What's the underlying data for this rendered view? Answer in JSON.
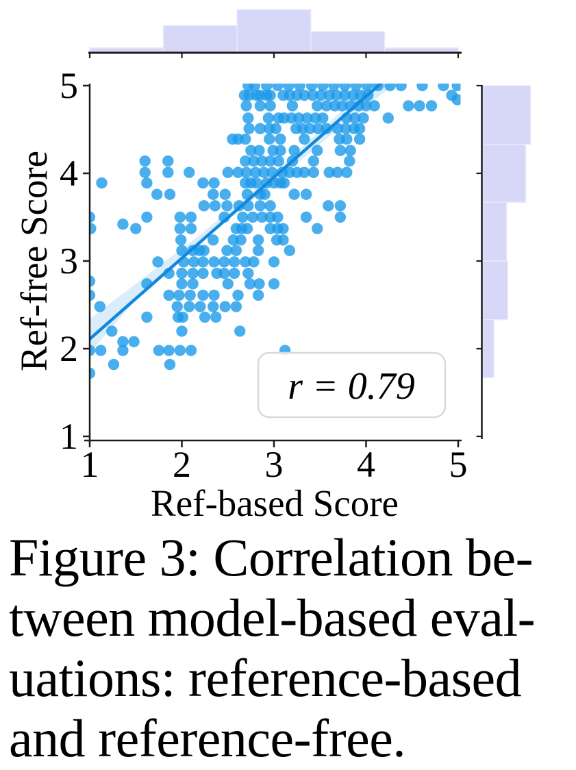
{
  "caption": {
    "lines": [
      "Figure 3: Correlation be-",
      "tween model-based eval-",
      "uations: reference-based",
      "and reference-free."
    ]
  },
  "chart_data": {
    "type": "scatter",
    "title": "",
    "xlabel": "Ref-based Score",
    "ylabel": "Ref-free Score",
    "xlim": [
      1,
      5
    ],
    "ylim": [
      1,
      5
    ],
    "x_ticks": [
      1,
      2,
      3,
      4,
      5
    ],
    "y_ticks": [
      1,
      2,
      3,
      4,
      5
    ],
    "grid": false,
    "legend": "none",
    "annotation": {
      "text": "r = 0.79",
      "correlation_r": 0.79,
      "position": "bottom-right"
    },
    "regression": {
      "line": [
        [
          1.0,
          2.11
        ],
        [
          4.35,
          5.2
        ]
      ],
      "band_upper": [
        [
          1.0,
          2.34
        ],
        [
          1.6,
          2.82
        ],
        [
          2.2,
          3.3
        ],
        [
          2.9,
          3.92
        ],
        [
          3.6,
          4.58
        ],
        [
          4.2,
          5.18
        ]
      ],
      "band_lower": [
        [
          1.0,
          1.95
        ],
        [
          1.6,
          2.68
        ],
        [
          2.2,
          3.24
        ],
        [
          2.9,
          3.8
        ],
        [
          3.6,
          4.42
        ],
        [
          4.5,
          5.18
        ]
      ]
    },
    "top_histogram": {
      "axis": "Ref-based Score",
      "bin_edges": [
        1.0,
        1.8,
        2.6,
        3.4,
        4.2,
        5.0
      ],
      "counts": [
        12,
        68,
        108,
        53,
        12
      ]
    },
    "right_histogram": {
      "axis": "Ref-free Score",
      "bin_edges": [
        1.67,
        2.33,
        3.0,
        3.67,
        4.33,
        5.0
      ],
      "counts": [
        19,
        42,
        40,
        72,
        80
      ]
    },
    "points": [
      [
        2.72,
        5
      ],
      [
        2.79,
        5
      ],
      [
        2.92,
        5
      ],
      [
        3.04,
        5
      ],
      [
        3.16,
        5
      ],
      [
        3.28,
        5
      ],
      [
        3.41,
        5
      ],
      [
        3.53,
        5
      ],
      [
        3.65,
        5
      ],
      [
        3.77,
        5
      ],
      [
        3.89,
        5
      ],
      [
        4.01,
        5
      ],
      [
        4.13,
        5
      ],
      [
        4.26,
        5
      ],
      [
        4.38,
        5
      ],
      [
        4.61,
        5
      ],
      [
        4.84,
        5
      ],
      [
        4.99,
        5
      ],
      [
        2.68,
        4.89
      ],
      [
        2.73,
        4.89
      ],
      [
        2.81,
        4.89
      ],
      [
        2.85,
        4.89
      ],
      [
        2.92,
        4.89
      ],
      [
        2.96,
        4.89
      ],
      [
        3.1,
        4.89
      ],
      [
        3.17,
        4.89
      ],
      [
        3.25,
        4.89
      ],
      [
        3.33,
        4.89
      ],
      [
        3.42,
        4.89
      ],
      [
        3.51,
        4.89
      ],
      [
        3.6,
        4.89
      ],
      [
        3.68,
        4.89
      ],
      [
        3.77,
        4.89
      ],
      [
        3.86,
        4.89
      ],
      [
        3.94,
        4.89
      ],
      [
        4.02,
        4.89
      ],
      [
        4.93,
        4.89
      ],
      [
        4.99,
        4.84
      ],
      [
        2.7,
        4.77
      ],
      [
        2.85,
        4.77
      ],
      [
        2.96,
        4.77
      ],
      [
        3.2,
        4.77
      ],
      [
        3.47,
        4.77
      ],
      [
        3.57,
        4.77
      ],
      [
        3.66,
        4.77
      ],
      [
        3.74,
        4.77
      ],
      [
        3.83,
        4.77
      ],
      [
        3.92,
        4.77
      ],
      [
        4.0,
        4.77
      ],
      [
        4.09,
        4.77
      ],
      [
        4.46,
        4.77
      ],
      [
        4.58,
        4.77
      ],
      [
        4.71,
        4.77
      ],
      [
        2.72,
        4.63
      ],
      [
        2.94,
        4.63
      ],
      [
        3.05,
        4.63
      ],
      [
        3.11,
        4.63
      ],
      [
        3.19,
        4.63
      ],
      [
        3.27,
        4.63
      ],
      [
        3.36,
        4.63
      ],
      [
        3.45,
        4.63
      ],
      [
        3.53,
        4.63
      ],
      [
        3.79,
        4.63
      ],
      [
        3.88,
        4.63
      ],
      [
        3.97,
        4.63
      ],
      [
        4.24,
        4.63
      ],
      [
        2.73,
        4.51
      ],
      [
        2.85,
        4.51
      ],
      [
        2.95,
        4.51
      ],
      [
        3.02,
        4.51
      ],
      [
        3.24,
        4.51
      ],
      [
        3.31,
        4.51
      ],
      [
        3.39,
        4.51
      ],
      [
        3.48,
        4.51
      ],
      [
        3.57,
        4.51
      ],
      [
        3.69,
        4.51
      ],
      [
        3.78,
        4.51
      ],
      [
        3.87,
        4.51
      ],
      [
        3.93,
        4.51
      ],
      [
        2.55,
        4.39
      ],
      [
        2.61,
        4.39
      ],
      [
        2.69,
        4.39
      ],
      [
        2.95,
        4.39
      ],
      [
        3.07,
        4.39
      ],
      [
        3.33,
        4.39
      ],
      [
        3.71,
        4.39
      ],
      [
        3.79,
        4.39
      ],
      [
        3.93,
        4.39
      ],
      [
        2.75,
        4.26
      ],
      [
        2.84,
        4.26
      ],
      [
        2.99,
        4.26
      ],
      [
        3.07,
        4.26
      ],
      [
        3.22,
        4.26
      ],
      [
        3.47,
        4.26
      ],
      [
        3.72,
        4.26
      ],
      [
        3.83,
        4.26
      ],
      [
        1.6,
        4.14
      ],
      [
        1.85,
        4.14
      ],
      [
        2.69,
        4.14
      ],
      [
        2.78,
        4.14
      ],
      [
        2.87,
        4.14
      ],
      [
        2.96,
        4.14
      ],
      [
        3.05,
        4.14
      ],
      [
        3.2,
        4.14
      ],
      [
        3.43,
        4.14
      ],
      [
        3.82,
        4.14
      ],
      [
        1.6,
        4.01
      ],
      [
        1.85,
        4.01
      ],
      [
        2.08,
        4.01
      ],
      [
        2.5,
        4.01
      ],
      [
        2.61,
        4.01
      ],
      [
        2.7,
        4.01
      ],
      [
        2.8,
        4.01
      ],
      [
        2.89,
        4.01
      ],
      [
        2.98,
        4.01
      ],
      [
        3.09,
        4.01
      ],
      [
        3.17,
        4.01
      ],
      [
        3.25,
        4.01
      ],
      [
        3.33,
        4.01
      ],
      [
        3.43,
        4.01
      ],
      [
        3.6,
        4.01
      ],
      [
        3.69,
        4.01
      ],
      [
        3.79,
        4.01
      ],
      [
        1.13,
        3.89
      ],
      [
        1.62,
        3.89
      ],
      [
        2.23,
        3.89
      ],
      [
        2.35,
        3.89
      ],
      [
        2.69,
        3.89
      ],
      [
        2.75,
        3.89
      ],
      [
        2.81,
        3.89
      ],
      [
        2.92,
        3.89
      ],
      [
        3.0,
        3.89
      ],
      [
        3.07,
        3.89
      ],
      [
        3.11,
        3.89
      ],
      [
        1.73,
        3.76
      ],
      [
        1.87,
        3.76
      ],
      [
        2.34,
        3.76
      ],
      [
        2.47,
        3.76
      ],
      [
        2.71,
        3.76
      ],
      [
        2.85,
        3.76
      ],
      [
        2.9,
        3.76
      ],
      [
        3.22,
        3.76
      ],
      [
        3.35,
        3.76
      ],
      [
        2.24,
        3.63
      ],
      [
        2.36,
        3.63
      ],
      [
        2.49,
        3.63
      ],
      [
        2.62,
        3.63
      ],
      [
        2.72,
        3.63
      ],
      [
        2.85,
        3.63
      ],
      [
        2.96,
        3.63
      ],
      [
        3.59,
        3.63
      ],
      [
        3.72,
        3.63
      ],
      [
        1.0,
        3.5
      ],
      [
        1.62,
        3.5
      ],
      [
        1.98,
        3.5
      ],
      [
        2.1,
        3.5
      ],
      [
        2.46,
        3.5
      ],
      [
        2.66,
        3.5
      ],
      [
        2.77,
        3.5
      ],
      [
        2.87,
        3.5
      ],
      [
        2.96,
        3.5
      ],
      [
        3.04,
        3.5
      ],
      [
        3.35,
        3.5
      ],
      [
        3.72,
        3.5
      ],
      [
        1.36,
        3.42
      ],
      [
        1.01,
        3.37
      ],
      [
        1.5,
        3.37
      ],
      [
        1.98,
        3.37
      ],
      [
        2.1,
        3.37
      ],
      [
        2.59,
        3.37
      ],
      [
        2.65,
        3.37
      ],
      [
        2.71,
        3.37
      ],
      [
        2.96,
        3.37
      ],
      [
        3.04,
        3.37
      ],
      [
        3.1,
        3.37
      ],
      [
        3.47,
        3.37
      ],
      [
        1.99,
        3.24
      ],
      [
        2.34,
        3.24
      ],
      [
        2.56,
        3.24
      ],
      [
        2.64,
        3.24
      ],
      [
        2.83,
        3.24
      ],
      [
        3.03,
        3.24
      ],
      [
        3.1,
        3.24
      ],
      [
        2.0,
        3.12
      ],
      [
        2.12,
        3.12
      ],
      [
        2.19,
        3.12
      ],
      [
        2.24,
        3.12
      ],
      [
        2.49,
        3.12
      ],
      [
        2.59,
        3.12
      ],
      [
        2.83,
        3.12
      ],
      [
        3.17,
        3.12
      ],
      [
        1.74,
        2.99
      ],
      [
        2.02,
        2.99
      ],
      [
        2.13,
        2.99
      ],
      [
        2.23,
        2.99
      ],
      [
        2.35,
        2.99
      ],
      [
        2.46,
        2.99
      ],
      [
        2.57,
        2.99
      ],
      [
        2.69,
        2.99
      ],
      [
        2.78,
        2.99
      ],
      [
        3.0,
        2.99
      ],
      [
        1.86,
        2.86
      ],
      [
        2.0,
        2.86
      ],
      [
        2.12,
        2.86
      ],
      [
        2.23,
        2.86
      ],
      [
        2.38,
        2.86
      ],
      [
        2.46,
        2.86
      ],
      [
        2.57,
        2.86
      ],
      [
        2.72,
        2.86
      ],
      [
        1.0,
        2.77
      ],
      [
        1.62,
        2.74
      ],
      [
        2.0,
        2.74
      ],
      [
        2.12,
        2.74
      ],
      [
        2.5,
        2.74
      ],
      [
        2.74,
        2.74
      ],
      [
        2.84,
        2.74
      ],
      [
        3.0,
        2.74
      ],
      [
        1.0,
        2.61
      ],
      [
        1.86,
        2.61
      ],
      [
        1.97,
        2.61
      ],
      [
        2.09,
        2.61
      ],
      [
        2.23,
        2.61
      ],
      [
        2.35,
        2.61
      ],
      [
        2.61,
        2.61
      ],
      [
        2.83,
        2.61
      ],
      [
        1.11,
        2.48
      ],
      [
        1.95,
        2.48
      ],
      [
        2.08,
        2.48
      ],
      [
        2.2,
        2.48
      ],
      [
        2.34,
        2.48
      ],
      [
        2.47,
        2.48
      ],
      [
        2.59,
        2.48
      ],
      [
        1.62,
        2.36
      ],
      [
        1.96,
        2.36
      ],
      [
        2.01,
        2.36
      ],
      [
        2.25,
        2.36
      ],
      [
        2.37,
        2.36
      ],
      [
        1.24,
        2.2
      ],
      [
        2.0,
        2.2
      ],
      [
        2.63,
        2.2
      ],
      [
        1.36,
        2.08
      ],
      [
        1.48,
        2.08
      ],
      [
        1.0,
        1.98
      ],
      [
        1.12,
        1.98
      ],
      [
        1.36,
        1.98
      ],
      [
        1.75,
        1.98
      ],
      [
        1.86,
        1.98
      ],
      [
        1.98,
        1.98
      ],
      [
        2.1,
        1.98
      ],
      [
        3.12,
        1.98
      ],
      [
        1.26,
        1.82
      ],
      [
        1.87,
        1.82
      ],
      [
        1.0,
        1.72
      ]
    ],
    "colors": {
      "dot": "#1b9ae9",
      "regression_line": "#1288dd",
      "confidence_band": "#d7ebfa",
      "histogram_fill": "#d7d7f7",
      "histogram_edge": "#e9e9fc",
      "axis": "#1c1c1c",
      "annotation_border": "#d9d9d9"
    }
  }
}
